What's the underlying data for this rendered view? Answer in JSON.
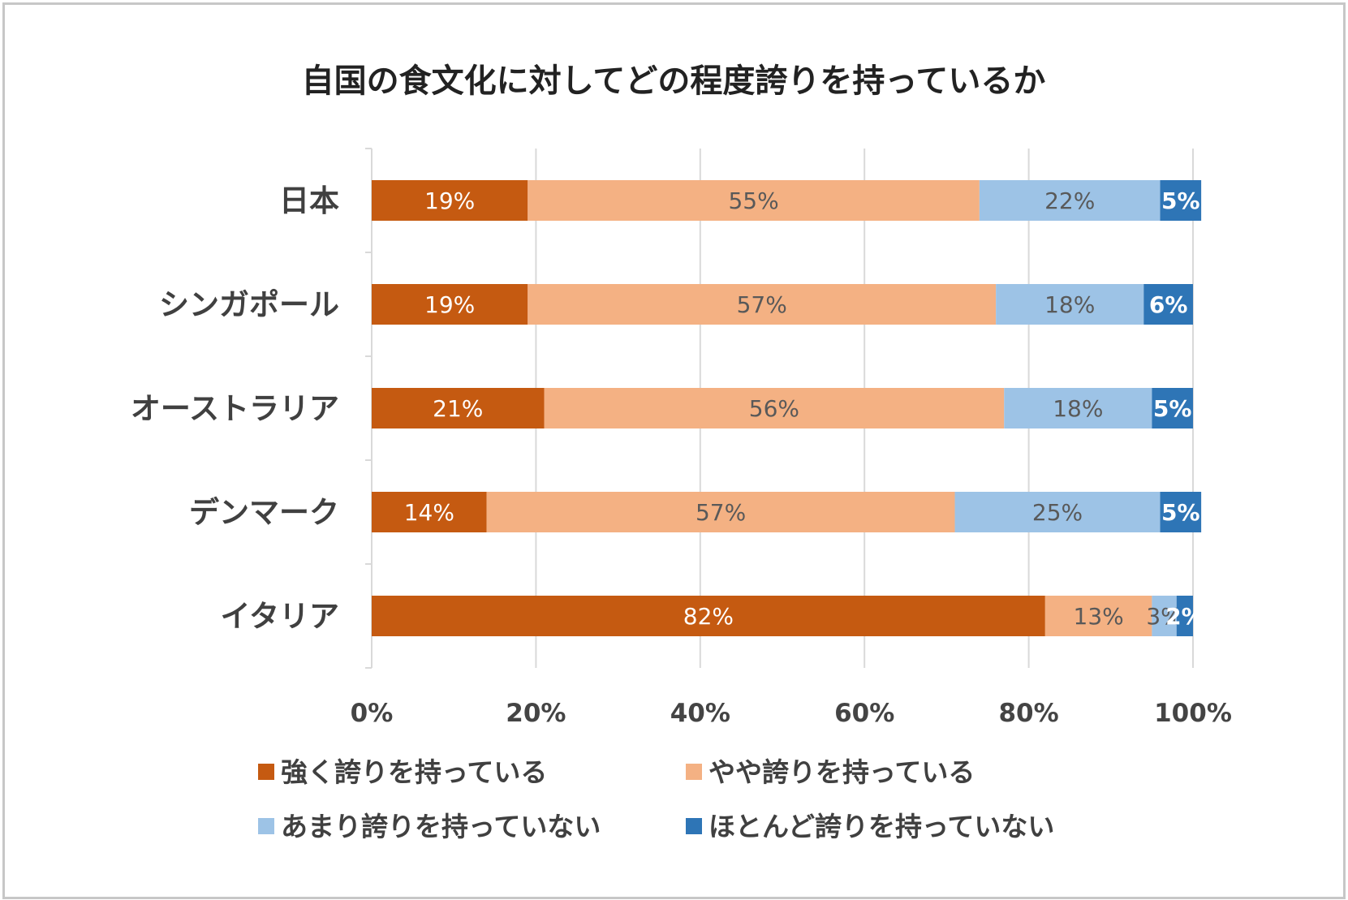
{
  "chart_data": {
    "type": "bar",
    "orientation": "horizontal",
    "stacked": true,
    "title": "自国の食文化に対してどの程度誇りを持っているか",
    "categories": [
      "日本",
      "シンガポール",
      "オーストラリア",
      "デンマーク",
      "イタリア"
    ],
    "series": [
      {
        "name": "強く誇りを持っている",
        "color": "#c55a11",
        "text_color": "#ffffff",
        "values": [
          19,
          19,
          21,
          14,
          82
        ],
        "labels": [
          "19%",
          "19%",
          "21%",
          "14%",
          "82%"
        ]
      },
      {
        "name": "やや誇りを持っている",
        "color": "#f4b183",
        "text_color": "#595959",
        "values": [
          55,
          57,
          56,
          57,
          13
        ],
        "labels": [
          "55%",
          "57%",
          "56%",
          "57%",
          "13%"
        ]
      },
      {
        "name": "あまり誇りを持っていない",
        "color": "#9dc3e6",
        "text_color": "#595959",
        "values": [
          22,
          18,
          18,
          25,
          3
        ],
        "labels": [
          "22%",
          "18%",
          "18%",
          "25%",
          "3%"
        ]
      },
      {
        "name": "ほとんど誇りを持っていない",
        "color": "#2e75b6",
        "text_color": "#ffffff",
        "values": [
          5,
          6,
          5,
          5,
          2
        ],
        "labels": [
          "5%",
          "6%",
          "5%",
          "5%",
          "2%"
        ]
      }
    ],
    "x_ticks": [
      "0%",
      "20%",
      "40%",
      "60%",
      "80%",
      "100%"
    ],
    "xlim": [
      0,
      100
    ],
    "xlabel": "",
    "ylabel": "",
    "grid": "vertical",
    "legend_position": "bottom"
  }
}
